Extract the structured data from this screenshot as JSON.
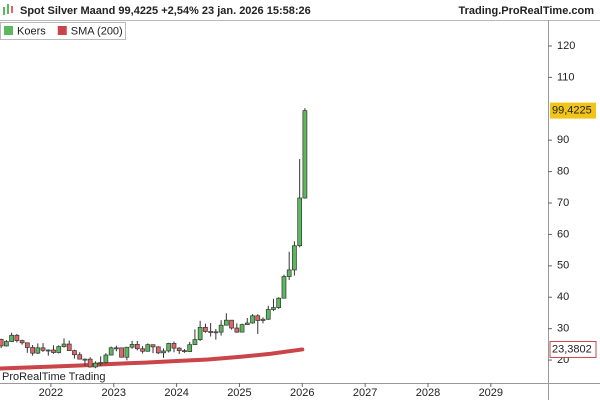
{
  "chart_data": {
    "type": "candlestick",
    "title": "Spot  Silver Maand 99,4225 +2,54% 23 jan. 2026 15:58:26",
    "source": "Trading.ProRealTime.com",
    "watermark": "ProRealTime Trading",
    "xlim": [
      2021.19,
      2029.91
    ],
    "xticks": [
      2022,
      2023,
      2024,
      2025,
      2026,
      2027,
      2028,
      2029
    ],
    "ylim": [
      12.7,
      121.9
    ],
    "yticks": [
      20,
      30,
      40,
      50,
      60,
      70,
      80,
      90,
      110,
      120
    ],
    "series": [
      {
        "name": "Koers",
        "color": "#5cb85c",
        "down_color": "#e06666",
        "value_label": "99,4225",
        "x": [
          2021.167,
          2021.25,
          2021.333,
          2021.417,
          2021.5,
          2021.583,
          2021.667,
          2021.75,
          2021.833,
          2021.917,
          2022.0,
          2022.083,
          2022.167,
          2022.25,
          2022.333,
          2022.417,
          2022.5,
          2022.583,
          2022.667,
          2022.75,
          2022.833,
          2022.917,
          2023.0,
          2023.083,
          2023.167,
          2023.25,
          2023.333,
          2023.417,
          2023.5,
          2023.583,
          2023.667,
          2023.75,
          2023.833,
          2023.917,
          2024.0,
          2024.083,
          2024.167,
          2024.25,
          2024.333,
          2024.417,
          2024.5,
          2024.583,
          2024.667,
          2024.75,
          2024.833,
          2024.917,
          2025.0,
          2025.083,
          2025.167,
          2025.25,
          2025.333,
          2025.417,
          2025.5,
          2025.583,
          2025.667,
          2025.75,
          2025.833,
          2025.917,
          2026.0
        ],
        "open": [
          26.6,
          24.5,
          25.9,
          27.9,
          26.2,
          25.5,
          24.0,
          22.2,
          23.9,
          23.1,
          23.2,
          22.4,
          24.3,
          25.1,
          23.0,
          21.7,
          20.3,
          20.3,
          17.8,
          19.0,
          19.2,
          21.6,
          23.9,
          23.9,
          20.9,
          24.1,
          25.0,
          23.6,
          22.8,
          24.9,
          24.2,
          22.3,
          22.9,
          25.3,
          23.8,
          23.0,
          22.7,
          24.9,
          26.5,
          30.4,
          29.1,
          29.0,
          28.9,
          31.1,
          32.7,
          30.2,
          28.9,
          31.3,
          31.8,
          34.1,
          32.6,
          33.0,
          36.1,
          36.7,
          39.7,
          46.6,
          48.7,
          56.4,
          71.6
        ],
        "high": [
          26.8,
          26.4,
          28.7,
          28.3,
          26.5,
          25.6,
          24.8,
          25.3,
          25.4,
          23.4,
          24.7,
          24.7,
          26.9,
          26.2,
          23.3,
          22.5,
          20.5,
          20.9,
          19.6,
          21.2,
          22.2,
          24.3,
          24.6,
          24.0,
          24.1,
          26.1,
          26.1,
          24.5,
          25.3,
          24.9,
          24.4,
          23.7,
          25.5,
          25.9,
          24.1,
          23.5,
          25.8,
          29.8,
          32.5,
          31.6,
          31.8,
          29.9,
          32.7,
          34.9,
          32.7,
          31.7,
          31.6,
          33.4,
          34.6,
          34.6,
          33.6,
          37.3,
          39.5,
          40.0,
          47.2,
          54.5,
          57.8,
          84.0,
          100.2
        ],
        "low": [
          23.8,
          24.3,
          25.8,
          25.6,
          24.9,
          22.3,
          21.4,
          21.9,
          22.6,
          21.4,
          22.0,
          22.1,
          24.0,
          22.9,
          20.5,
          20.2,
          18.2,
          17.6,
          17.4,
          18.1,
          18.8,
          21.5,
          22.8,
          20.8,
          19.9,
          23.6,
          23.1,
          22.1,
          22.7,
          22.2,
          21.9,
          20.7,
          22.4,
          22.5,
          21.9,
          22.3,
          22.6,
          24.8,
          26.1,
          28.7,
          27.5,
          26.5,
          27.8,
          31.0,
          29.7,
          28.7,
          28.8,
          31.2,
          31.6,
          28.3,
          31.7,
          32.8,
          35.6,
          36.3,
          39.6,
          45.5,
          46.9,
          55.9,
          71.4
        ],
        "close": [
          24.5,
          25.9,
          27.9,
          26.2,
          25.5,
          24.0,
          22.2,
          23.9,
          23.1,
          23.2,
          22.4,
          24.3,
          25.1,
          23.0,
          21.7,
          20.3,
          20.3,
          17.8,
          19.0,
          19.2,
          21.6,
          23.9,
          23.9,
          20.9,
          24.1,
          25.0,
          23.6,
          22.8,
          24.9,
          24.2,
          22.3,
          22.9,
          25.3,
          23.8,
          23.0,
          22.7,
          24.9,
          26.5,
          30.4,
          29.1,
          29.0,
          28.9,
          31.1,
          32.7,
          30.2,
          28.9,
          31.3,
          31.8,
          34.1,
          32.6,
          33.0,
          36.1,
          36.7,
          39.7,
          46.6,
          48.7,
          56.4,
          71.6,
          99.4225
        ]
      },
      {
        "name": "SMA (200)",
        "type": "line",
        "color": "#c9454a",
        "value_label": "23,3802",
        "x": [
          2021.19,
          2022.0,
          2022.5,
          2023.0,
          2023.5,
          2024.0,
          2024.5,
          2025.0,
          2025.5,
          2026.0
        ],
        "values": [
          17.3,
          17.9,
          18.3,
          18.8,
          19.2,
          19.7,
          20.2,
          21.0,
          22.0,
          23.3802
        ]
      }
    ]
  }
}
